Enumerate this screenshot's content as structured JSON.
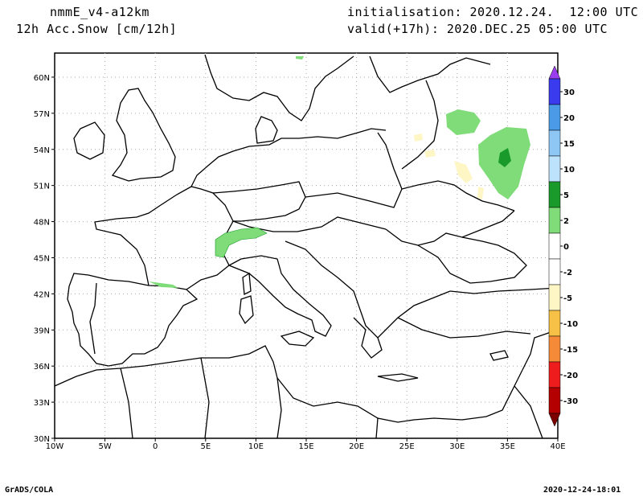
{
  "header": {
    "model": "nmmE_v4-a12km",
    "variable": "12h Acc.Snow [cm/12h]",
    "init": "initialisation: 2020.12.24.  12:00 UTC",
    "valid": "valid(+17h): 2020.DEC.25 05:00 UTC"
  },
  "footer": {
    "left": "GrADS/COLA",
    "right": "2020-12-24-18:01"
  },
  "map": {
    "lon_range": [
      -10,
      40
    ],
    "lat_range": [
      30,
      62
    ],
    "lat_ticks": [
      {
        "value": 30,
        "label": "30N"
      },
      {
        "value": 33,
        "label": "33N"
      },
      {
        "value": 36,
        "label": "36N"
      },
      {
        "value": 39,
        "label": "39N"
      },
      {
        "value": 42,
        "label": "42N"
      },
      {
        "value": 45,
        "label": "45N"
      },
      {
        "value": 48,
        "label": "48N"
      },
      {
        "value": 51,
        "label": "51N"
      },
      {
        "value": 54,
        "label": "54N"
      },
      {
        "value": 57,
        "label": "57N"
      },
      {
        "value": 60,
        "label": "60N"
      }
    ],
    "lon_ticks": [
      {
        "value": -10,
        "label": "10W"
      },
      {
        "value": -5,
        "label": "5W"
      },
      {
        "value": 0,
        "label": "0"
      },
      {
        "value": 5,
        "label": "5E"
      },
      {
        "value": 10,
        "label": "10E"
      },
      {
        "value": 15,
        "label": "15E"
      },
      {
        "value": 20,
        "label": "20E"
      },
      {
        "value": 25,
        "label": "25E"
      },
      {
        "value": 30,
        "label": "30E"
      },
      {
        "value": 35,
        "label": "35E"
      },
      {
        "value": 40,
        "label": "40E"
      }
    ],
    "grid": "dotted"
  },
  "colorbar": {
    "levels": [
      {
        "label": "30",
        "color": "#3a3aee"
      },
      {
        "label": "20",
        "color": "#4a9ae8"
      },
      {
        "label": "15",
        "color": "#8ec6f4"
      },
      {
        "label": "10",
        "color": "#bde2fb"
      },
      {
        "label": "5",
        "color": "#1a9a2a"
      },
      {
        "label": "2",
        "color": "#7fdc78"
      },
      {
        "label": "0",
        "color": "#ffffff"
      },
      {
        "label": "-2",
        "color": "#ffffff"
      },
      {
        "label": "-5",
        "color": "#fff6c6"
      },
      {
        "label": "-10",
        "color": "#f7c046"
      },
      {
        "label": "-15",
        "color": "#f58a38"
      },
      {
        "label": "-20",
        "color": "#ee1c1c"
      },
      {
        "label": "-30",
        "color": "#b40000"
      }
    ],
    "top_color": "#9a3ef0",
    "bottom_color": "#7c0000"
  }
}
